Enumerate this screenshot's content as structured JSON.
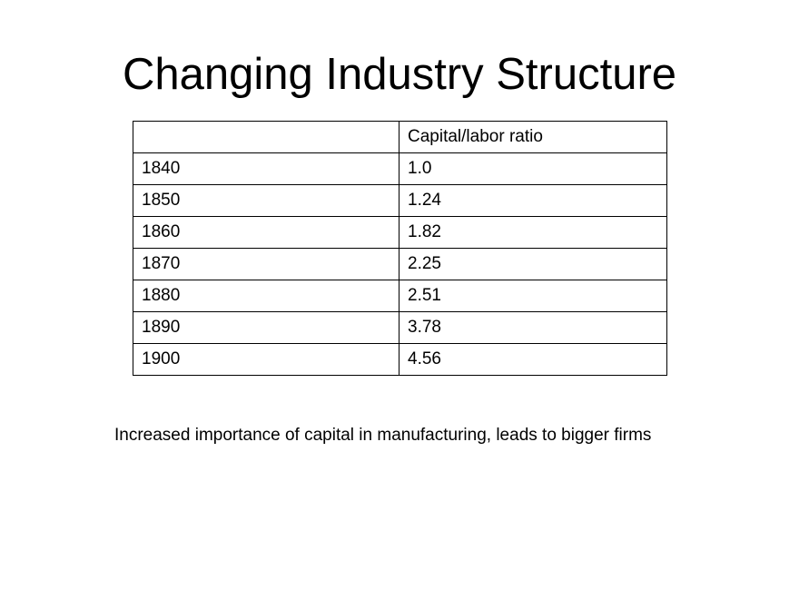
{
  "slide": {
    "title": "Changing Industry Structure",
    "caption": "Increased importance of capital in manufacturing, leads to bigger firms"
  },
  "table": {
    "headers": [
      "",
      "Capital/labor ratio"
    ],
    "rows": [
      [
        "1840",
        "1.0"
      ],
      [
        "1850",
        "1.24"
      ],
      [
        "1860",
        "1.82"
      ],
      [
        "1870",
        "2.25"
      ],
      [
        "1880",
        "2.51"
      ],
      [
        "1890",
        "3.78"
      ],
      [
        "1900",
        "4.56"
      ]
    ]
  }
}
